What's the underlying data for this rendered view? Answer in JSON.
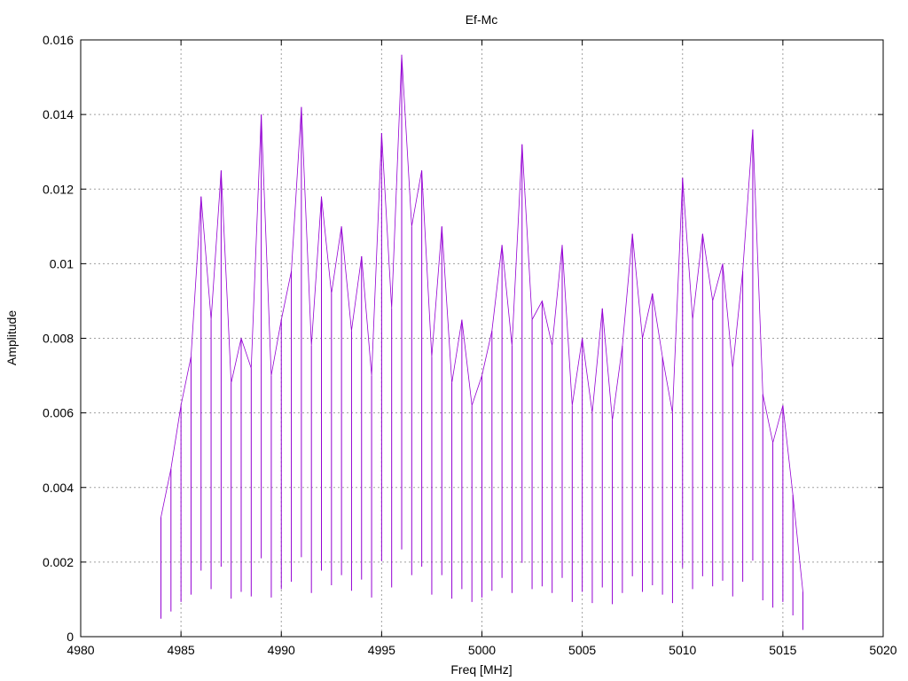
{
  "chart_data": {
    "type": "line",
    "title": "Ef-Mc",
    "xlabel": "Freq [MHz]",
    "ylabel": "Amplitude",
    "xlim": [
      4980,
      5020
    ],
    "ylim": [
      0,
      0.016
    ],
    "xticks": [
      4980,
      4985,
      4990,
      4995,
      5000,
      5005,
      5010,
      5015,
      5020
    ],
    "xtick_labels": [
      "4980",
      "4985",
      "4990",
      "4995",
      "5000",
      "5005",
      "5010",
      "5015",
      "5020"
    ],
    "yticks": [
      0,
      0.002,
      0.004,
      0.006,
      0.008,
      0.01,
      0.012,
      0.014,
      0.016
    ],
    "ytick_labels": [
      "0",
      "0.002",
      "0.004",
      "0.006",
      "0.008",
      "0.01",
      "0.012",
      "0.014",
      "0.016"
    ],
    "grid": true,
    "series": [
      {
        "color": "#9400d3",
        "x": [
          4984.0,
          4984.5,
          4985.0,
          4985.5,
          4986.0,
          4986.5,
          4987.0,
          4987.5,
          4988.0,
          4988.5,
          4989.0,
          4989.5,
          4990.0,
          4990.5,
          4991.0,
          4991.5,
          4992.0,
          4992.5,
          4993.0,
          4993.5,
          4994.0,
          4994.5,
          4995.0,
          4995.5,
          4996.0,
          4996.5,
          4997.0,
          4997.5,
          4998.0,
          4998.5,
          4999.0,
          4999.5,
          5000.0,
          5000.5,
          5001.0,
          5001.5,
          5002.0,
          5002.5,
          5003.0,
          5003.5,
          5004.0,
          5004.5,
          5005.0,
          5005.5,
          5006.0,
          5006.5,
          5007.0,
          5007.5,
          5008.0,
          5008.5,
          5009.0,
          5009.5,
          5010.0,
          5010.5,
          5011.0,
          5011.5,
          5012.0,
          5012.5,
          5013.0,
          5013.5,
          5014.0,
          5014.5,
          5015.0,
          5015.5,
          5016.0
        ],
        "y": [
          0.0032,
          0.0045,
          0.0062,
          0.0075,
          0.0118,
          0.0085,
          0.0125,
          0.0068,
          0.008,
          0.0072,
          0.014,
          0.007,
          0.0085,
          0.0098,
          0.0142,
          0.0078,
          0.0118,
          0.0092,
          0.011,
          0.0082,
          0.0102,
          0.007,
          0.0135,
          0.0088,
          0.0156,
          0.011,
          0.0125,
          0.0075,
          0.011,
          0.0068,
          0.0085,
          0.0062,
          0.007,
          0.0082,
          0.0105,
          0.0078,
          0.0132,
          0.0085,
          0.009,
          0.0078,
          0.0105,
          0.0062,
          0.008,
          0.006,
          0.0088,
          0.0058,
          0.0078,
          0.0108,
          0.008,
          0.0092,
          0.0075,
          0.006,
          0.0123,
          0.0085,
          0.0108,
          0.009,
          0.01,
          0.0072,
          0.0098,
          0.0136,
          0.0065,
          0.0052,
          0.0062,
          0.0038,
          0.0012
        ]
      }
    ]
  }
}
